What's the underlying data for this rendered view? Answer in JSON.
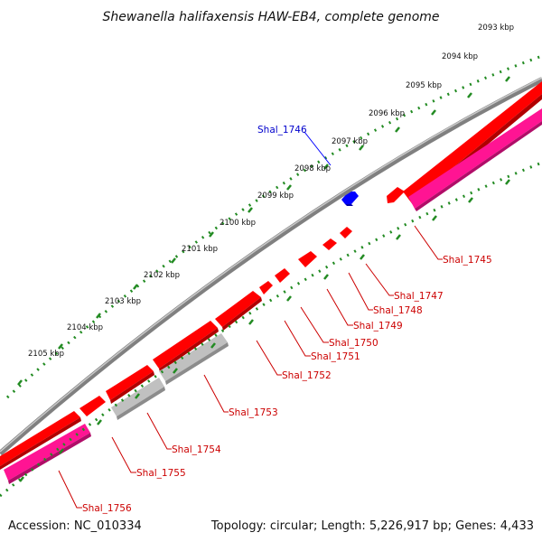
{
  "title": "Shewanella halifaxensis HAW-EB4, complete genome",
  "footer": {
    "accession": "Accession: NC_010334",
    "summary": "Topology: circular; Length: 5,226,917 bp; Genes: 4,433"
  },
  "ticks": [
    "2093 kbp",
    "2094 kbp",
    "2095 kbp",
    "2096 kbp",
    "2097 kbp",
    "2098 kbp",
    "2099 kbp",
    "2100 kbp",
    "2101 kbp",
    "2102 kbp",
    "2103 kbp",
    "2104 kbp",
    "2105 kbp"
  ],
  "colors": {
    "forward_cds": "#ff0000",
    "forward_cds_side": "#cc0000",
    "reverse_cds": "#ff0000",
    "rna": "#ff1493",
    "other": "#c0c0c0",
    "highlight": "#0000ff",
    "backbone": "#808080",
    "tick": "#228b22",
    "reverse_label": "#cc0000",
    "highlight_label": "#0000cc"
  },
  "genes": [
    {
      "name": "Shal_1746",
      "strand": "forward",
      "kind": "highlight",
      "kbp": 2098.0
    },
    {
      "name": "Shal_1745",
      "strand": "reverse",
      "kind": "rna",
      "kbp": 2097.5
    },
    {
      "name": "Shal_1747",
      "strand": "reverse",
      "kind": "cds",
      "kbp": 2098.4
    },
    {
      "name": "Shal_1748",
      "strand": "reverse",
      "kind": "cds",
      "kbp": 2098.7
    },
    {
      "name": "Shal_1749",
      "strand": "reverse",
      "kind": "cds",
      "kbp": 2099.1
    },
    {
      "name": "Shal_1750",
      "strand": "reverse",
      "kind": "cds",
      "kbp": 2099.6
    },
    {
      "name": "Shal_1751",
      "strand": "reverse",
      "kind": "cds",
      "kbp": 2100.0
    },
    {
      "name": "Shal_1752",
      "strand": "reverse",
      "kind": "cds",
      "kbp": 2100.7
    },
    {
      "name": "Shal_1753",
      "strand": "reverse",
      "kind": "other",
      "kbp": 2102.0
    },
    {
      "name": "Shal_1754",
      "strand": "reverse",
      "kind": "other",
      "kbp": 2103.4
    },
    {
      "name": "Shal_1755",
      "strand": "reverse",
      "kind": "cds",
      "kbp": 2104.1
    },
    {
      "name": "Shal_1756",
      "strand": "reverse",
      "kind": "rna",
      "kbp": 2105.0
    }
  ]
}
